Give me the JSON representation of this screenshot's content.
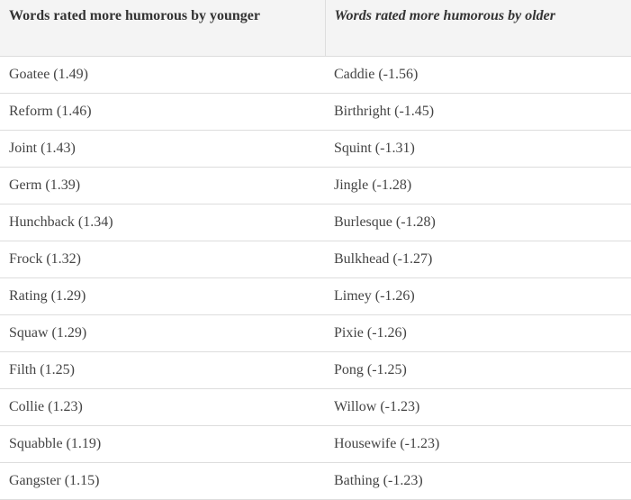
{
  "table": {
    "header": [
      "Words rated more humorous by younger",
      "Words rated more humorous by older"
    ],
    "rows": [
      [
        "Goatee (1.49)",
        "Caddie (-1.56)"
      ],
      [
        "Reform (1.46)",
        "Birthright (-1.45)"
      ],
      [
        "Joint (1.43)",
        "Squint (-1.31)"
      ],
      [
        "Germ (1.39)",
        "Jingle (-1.28)"
      ],
      [
        "Hunchback (1.34)",
        "Burlesque (-1.28)"
      ],
      [
        "Frock (1.32)",
        "Bulkhead (-1.27)"
      ],
      [
        "Rating (1.29)",
        "Limey (-1.26)"
      ],
      [
        "Squaw (1.29)",
        "Pixie (-1.26)"
      ],
      [
        "Filth (1.25)",
        "Pong (-1.25)"
      ],
      [
        "Collie (1.23)",
        "Willow (-1.23)"
      ],
      [
        "Squabble (1.19)",
        "Housewife (-1.23)"
      ],
      [
        "Gangster (1.15)",
        "Bathing (-1.23)"
      ]
    ]
  }
}
